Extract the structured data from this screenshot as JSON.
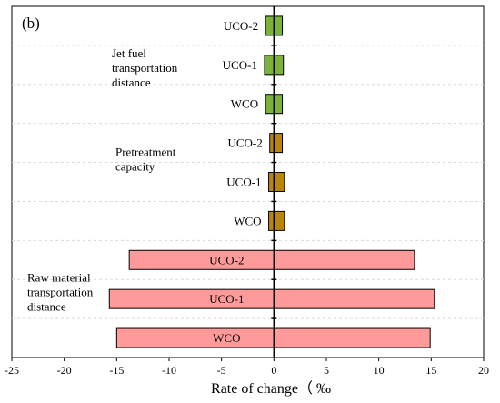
{
  "chart_data": {
    "type": "bar",
    "orientation": "horizontal",
    "panel_label": "(b)",
    "xlabel": "Rate of change（ ‰",
    "xlim": [
      -25,
      20
    ],
    "xticks": [
      -25,
      -20,
      -15,
      -10,
      -5,
      0,
      5,
      10,
      15,
      20
    ],
    "grid": "horizontal dashed",
    "groups": [
      {
        "name_lines": [
          "Jet fuel",
          "transportation",
          "distance"
        ],
        "color": "#7bb33a",
        "bars": [
          {
            "label": "UCO-2",
            "neg": -0.8,
            "pos": 0.8
          },
          {
            "label": "UCO-1",
            "neg": -0.9,
            "pos": 0.9
          },
          {
            "label": "WCO",
            "neg": -0.8,
            "pos": 0.8
          }
        ]
      },
      {
        "name_lines": [
          "Pretreatment",
          "capacity"
        ],
        "color": "#b8860b",
        "bars": [
          {
            "label": "UCO-2",
            "neg": -0.4,
            "pos": 0.8
          },
          {
            "label": "UCO-1",
            "neg": -0.5,
            "pos": 1.0
          },
          {
            "label": "WCO",
            "neg": -0.5,
            "pos": 1.0
          }
        ]
      },
      {
        "name_lines": [
          "Raw material",
          "transportation",
          "distance"
        ],
        "color": "#ff9a9a",
        "bars": [
          {
            "label": "UCO-2",
            "neg": -13.8,
            "pos": 13.4
          },
          {
            "label": "UCO-1",
            "neg": -15.7,
            "pos": 15.3
          },
          {
            "label": "WCO",
            "neg": -15.0,
            "pos": 14.9
          }
        ]
      }
    ]
  }
}
